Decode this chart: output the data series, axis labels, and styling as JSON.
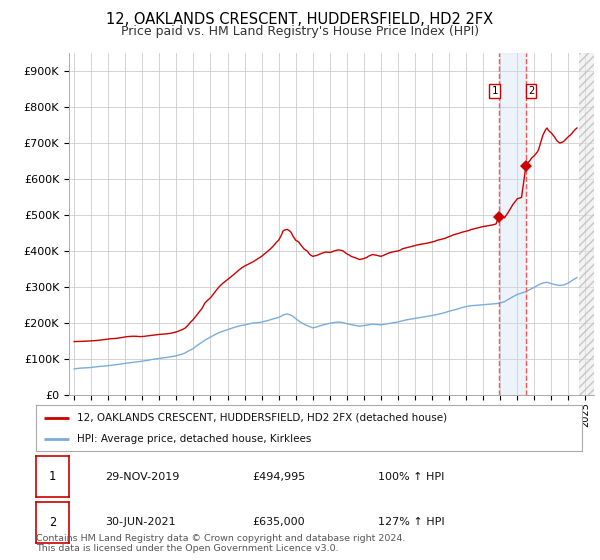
{
  "title": "12, OAKLANDS CRESCENT, HUDDERSFIELD, HD2 2FX",
  "subtitle": "Price paid vs. HM Land Registry's House Price Index (HPI)",
  "title_fontsize": 10.5,
  "subtitle_fontsize": 9,
  "ylabel_ticks": [
    "£0",
    "£100K",
    "£200K",
    "£300K",
    "£400K",
    "£500K",
    "£600K",
    "£700K",
    "£800K",
    "£900K"
  ],
  "ytick_values": [
    0,
    100000,
    200000,
    300000,
    400000,
    500000,
    600000,
    700000,
    800000,
    900000
  ],
  "ylim": [
    0,
    950000
  ],
  "xlim_start": 1994.7,
  "xlim_end": 2025.5,
  "background_color": "#ffffff",
  "grid_color": "#cccccc",
  "red_line_color": "#cc0000",
  "blue_line_color": "#7aaddb",
  "sale1_date_x": 2019.92,
  "sale1_price": 494995,
  "sale1_label": "1",
  "sale2_date_x": 2021.5,
  "sale2_price": 635000,
  "sale2_label": "2",
  "hatch_start": 2024.6,
  "shade_color": "#cce0ff",
  "dashed_color": "#ff5555",
  "legend_line1": "12, OAKLANDS CRESCENT, HUDDERSFIELD, HD2 2FX (detached house)",
  "legend_line2": "HPI: Average price, detached house, Kirklees",
  "table_row1": [
    "1",
    "29-NOV-2019",
    "£494,995",
    "100% ↑ HPI"
  ],
  "table_row2": [
    "2",
    "30-JUN-2021",
    "£635,000",
    "127% ↑ HPI"
  ],
  "footer": "Contains HM Land Registry data © Crown copyright and database right 2024.\nThis data is licensed under the Open Government Licence v3.0.",
  "red_hpi_data": [
    [
      1995.0,
      148000
    ],
    [
      1995.17,
      148200
    ],
    [
      1995.33,
      148400
    ],
    [
      1995.5,
      148500
    ],
    [
      1995.67,
      149000
    ],
    [
      1995.83,
      149500
    ],
    [
      1996.0,
      150000
    ],
    [
      1996.17,
      150500
    ],
    [
      1996.33,
      151000
    ],
    [
      1996.5,
      152000
    ],
    [
      1996.67,
      153000
    ],
    [
      1996.83,
      154000
    ],
    [
      1997.0,
      155000
    ],
    [
      1997.17,
      156000
    ],
    [
      1997.33,
      156500
    ],
    [
      1997.5,
      157000
    ],
    [
      1997.67,
      158500
    ],
    [
      1997.83,
      159500
    ],
    [
      1998.0,
      161000
    ],
    [
      1998.17,
      162000
    ],
    [
      1998.33,
      162500
    ],
    [
      1998.5,
      163000
    ],
    [
      1998.67,
      162500
    ],
    [
      1998.83,
      162000
    ],
    [
      1999.0,
      162000
    ],
    [
      1999.17,
      163000
    ],
    [
      1999.33,
      164000
    ],
    [
      1999.5,
      165000
    ],
    [
      1999.67,
      166000
    ],
    [
      1999.83,
      167000
    ],
    [
      2000.0,
      168000
    ],
    [
      2000.17,
      168500
    ],
    [
      2000.33,
      169000
    ],
    [
      2000.5,
      170000
    ],
    [
      2000.67,
      171000
    ],
    [
      2000.83,
      173000
    ],
    [
      2001.0,
      175000
    ],
    [
      2001.17,
      178000
    ],
    [
      2001.33,
      181000
    ],
    [
      2001.5,
      185000
    ],
    [
      2001.67,
      193000
    ],
    [
      2001.83,
      202000
    ],
    [
      2002.0,
      210000
    ],
    [
      2002.17,
      220000
    ],
    [
      2002.33,
      230000
    ],
    [
      2002.5,
      240000
    ],
    [
      2002.67,
      255000
    ],
    [
      2002.83,
      263000
    ],
    [
      2003.0,
      270000
    ],
    [
      2003.17,
      280000
    ],
    [
      2003.33,
      290000
    ],
    [
      2003.5,
      300000
    ],
    [
      2003.67,
      308000
    ],
    [
      2003.83,
      314000
    ],
    [
      2004.0,
      320000
    ],
    [
      2004.17,
      327000
    ],
    [
      2004.33,
      333000
    ],
    [
      2004.5,
      340000
    ],
    [
      2004.67,
      347000
    ],
    [
      2004.83,
      353000
    ],
    [
      2005.0,
      358000
    ],
    [
      2005.17,
      362000
    ],
    [
      2005.33,
      366000
    ],
    [
      2005.5,
      370000
    ],
    [
      2005.67,
      375000
    ],
    [
      2005.83,
      380000
    ],
    [
      2006.0,
      385000
    ],
    [
      2006.17,
      392000
    ],
    [
      2006.33,
      398000
    ],
    [
      2006.5,
      405000
    ],
    [
      2006.67,
      413000
    ],
    [
      2006.83,
      422000
    ],
    [
      2007.0,
      430000
    ],
    [
      2007.17,
      445000
    ],
    [
      2007.25,
      455000
    ],
    [
      2007.33,
      458000
    ],
    [
      2007.5,
      460000
    ],
    [
      2007.67,
      455000
    ],
    [
      2007.75,
      450000
    ],
    [
      2007.83,
      442000
    ],
    [
      2008.0,
      430000
    ],
    [
      2008.17,
      425000
    ],
    [
      2008.25,
      420000
    ],
    [
      2008.33,
      415000
    ],
    [
      2008.5,
      405000
    ],
    [
      2008.67,
      400000
    ],
    [
      2008.75,
      395000
    ],
    [
      2008.83,
      390000
    ],
    [
      2009.0,
      385000
    ],
    [
      2009.17,
      387000
    ],
    [
      2009.25,
      388000
    ],
    [
      2009.5,
      393000
    ],
    [
      2009.75,
      397000
    ],
    [
      2010.0,
      396000
    ],
    [
      2010.17,
      398000
    ],
    [
      2010.25,
      400000
    ],
    [
      2010.5,
      403000
    ],
    [
      2010.75,
      401000
    ],
    [
      2011.0,
      392000
    ],
    [
      2011.17,
      388000
    ],
    [
      2011.25,
      385000
    ],
    [
      2011.5,
      381000
    ],
    [
      2011.75,
      376000
    ],
    [
      2012.0,
      379000
    ],
    [
      2012.17,
      382000
    ],
    [
      2012.25,
      385000
    ],
    [
      2012.5,
      390000
    ],
    [
      2012.75,
      388000
    ],
    [
      2013.0,
      385000
    ],
    [
      2013.17,
      388000
    ],
    [
      2013.25,
      390000
    ],
    [
      2013.5,
      395000
    ],
    [
      2013.75,
      398000
    ],
    [
      2014.0,
      400000
    ],
    [
      2014.17,
      403000
    ],
    [
      2014.25,
      406000
    ],
    [
      2014.5,
      409000
    ],
    [
      2014.75,
      412000
    ],
    [
      2015.0,
      415000
    ],
    [
      2015.17,
      417000
    ],
    [
      2015.25,
      418000
    ],
    [
      2015.5,
      420000
    ],
    [
      2015.75,
      422000
    ],
    [
      2016.0,
      425000
    ],
    [
      2016.17,
      427000
    ],
    [
      2016.25,
      429000
    ],
    [
      2016.5,
      432000
    ],
    [
      2016.75,
      435000
    ],
    [
      2017.0,
      440000
    ],
    [
      2017.17,
      443000
    ],
    [
      2017.25,
      445000
    ],
    [
      2017.5,
      448000
    ],
    [
      2017.75,
      452000
    ],
    [
      2018.0,
      455000
    ],
    [
      2018.17,
      457000
    ],
    [
      2018.25,
      459000
    ],
    [
      2018.5,
      462000
    ],
    [
      2018.75,
      465000
    ],
    [
      2019.0,
      468000
    ],
    [
      2019.17,
      469000
    ],
    [
      2019.25,
      470000
    ],
    [
      2019.5,
      472000
    ],
    [
      2019.75,
      475000
    ],
    [
      2019.92,
      494995
    ],
    [
      2020.0,
      498000
    ],
    [
      2020.17,
      495000
    ],
    [
      2020.25,
      492000
    ],
    [
      2020.5,
      510000
    ],
    [
      2020.75,
      530000
    ],
    [
      2021.0,
      545000
    ],
    [
      2021.25,
      549000
    ],
    [
      2021.5,
      635000
    ],
    [
      2021.67,
      648000
    ],
    [
      2021.75,
      652000
    ],
    [
      2021.83,
      658000
    ],
    [
      2022.0,
      665000
    ],
    [
      2022.17,
      675000
    ],
    [
      2022.25,
      682000
    ],
    [
      2022.33,
      695000
    ],
    [
      2022.5,
      722000
    ],
    [
      2022.67,
      738000
    ],
    [
      2022.75,
      742000
    ],
    [
      2022.83,
      735000
    ],
    [
      2023.0,
      728000
    ],
    [
      2023.17,
      718000
    ],
    [
      2023.25,
      712000
    ],
    [
      2023.33,
      706000
    ],
    [
      2023.5,
      700000
    ],
    [
      2023.67,
      703000
    ],
    [
      2023.75,
      706000
    ],
    [
      2023.83,
      710000
    ],
    [
      2024.0,
      718000
    ],
    [
      2024.17,
      725000
    ],
    [
      2024.25,
      730000
    ],
    [
      2024.4,
      738000
    ],
    [
      2024.5,
      742000
    ]
  ],
  "blue_hpi_data": [
    [
      1995.0,
      72000
    ],
    [
      1995.17,
      73000
    ],
    [
      1995.33,
      74000
    ],
    [
      1995.5,
      74500
    ],
    [
      1995.67,
      75000
    ],
    [
      1995.83,
      75500
    ],
    [
      1996.0,
      76000
    ],
    [
      1996.17,
      77000
    ],
    [
      1996.33,
      78000
    ],
    [
      1996.5,
      79000
    ],
    [
      1996.67,
      79500
    ],
    [
      1996.83,
      80000
    ],
    [
      1997.0,
      81000
    ],
    [
      1997.17,
      82000
    ],
    [
      1997.33,
      83000
    ],
    [
      1997.5,
      84000
    ],
    [
      1997.67,
      85000
    ],
    [
      1997.83,
      86000
    ],
    [
      1998.0,
      87500
    ],
    [
      1998.17,
      88500
    ],
    [
      1998.33,
      89500
    ],
    [
      1998.5,
      90500
    ],
    [
      1998.67,
      91500
    ],
    [
      1998.83,
      92500
    ],
    [
      1999.0,
      93500
    ],
    [
      1999.17,
      95000
    ],
    [
      1999.33,
      96000
    ],
    [
      1999.5,
      97500
    ],
    [
      1999.67,
      99000
    ],
    [
      1999.83,
      100000
    ],
    [
      2000.0,
      101000
    ],
    [
      2000.17,
      102500
    ],
    [
      2000.33,
      103500
    ],
    [
      2000.5,
      104500
    ],
    [
      2000.67,
      106000
    ],
    [
      2000.83,
      107000
    ],
    [
      2001.0,
      108500
    ],
    [
      2001.17,
      111000
    ],
    [
      2001.33,
      113000
    ],
    [
      2001.5,
      116000
    ],
    [
      2001.67,
      121000
    ],
    [
      2001.83,
      125000
    ],
    [
      2002.0,
      129000
    ],
    [
      2002.17,
      136000
    ],
    [
      2002.33,
      141000
    ],
    [
      2002.5,
      146000
    ],
    [
      2002.67,
      152000
    ],
    [
      2002.83,
      156000
    ],
    [
      2003.0,
      160500
    ],
    [
      2003.17,
      165000
    ],
    [
      2003.33,
      169000
    ],
    [
      2003.5,
      173000
    ],
    [
      2003.67,
      176000
    ],
    [
      2003.83,
      178500
    ],
    [
      2004.0,
      181000
    ],
    [
      2004.17,
      184000
    ],
    [
      2004.33,
      186500
    ],
    [
      2004.5,
      189000
    ],
    [
      2004.67,
      191000
    ],
    [
      2004.83,
      193000
    ],
    [
      2005.0,
      194000
    ],
    [
      2005.17,
      196000
    ],
    [
      2005.33,
      198000
    ],
    [
      2005.5,
      200000
    ],
    [
      2005.67,
      200000
    ],
    [
      2005.83,
      201000
    ],
    [
      2006.0,
      202000
    ],
    [
      2006.17,
      204500
    ],
    [
      2006.33,
      206000
    ],
    [
      2006.5,
      208500
    ],
    [
      2006.67,
      211000
    ],
    [
      2006.83,
      213000
    ],
    [
      2007.0,
      215500
    ],
    [
      2007.17,
      219000
    ],
    [
      2007.25,
      222000
    ],
    [
      2007.5,
      225000
    ],
    [
      2007.75,
      221000
    ],
    [
      2008.0,
      212000
    ],
    [
      2008.25,
      203000
    ],
    [
      2008.5,
      196000
    ],
    [
      2008.75,
      191000
    ],
    [
      2009.0,
      186000
    ],
    [
      2009.25,
      189000
    ],
    [
      2009.5,
      193000
    ],
    [
      2009.75,
      196000
    ],
    [
      2010.0,
      199000
    ],
    [
      2010.25,
      201000
    ],
    [
      2010.5,
      202500
    ],
    [
      2010.75,
      201000
    ],
    [
      2011.0,
      198000
    ],
    [
      2011.25,
      195000
    ],
    [
      2011.5,
      193000
    ],
    [
      2011.75,
      191000
    ],
    [
      2012.0,
      192500
    ],
    [
      2012.25,
      194500
    ],
    [
      2012.5,
      196500
    ],
    [
      2012.75,
      195500
    ],
    [
      2013.0,
      194500
    ],
    [
      2013.25,
      196500
    ],
    [
      2013.5,
      198500
    ],
    [
      2013.75,
      200500
    ],
    [
      2014.0,
      202500
    ],
    [
      2014.25,
      205500
    ],
    [
      2014.5,
      208500
    ],
    [
      2014.75,
      210500
    ],
    [
      2015.0,
      212500
    ],
    [
      2015.25,
      214500
    ],
    [
      2015.5,
      216500
    ],
    [
      2015.75,
      218500
    ],
    [
      2016.0,
      220500
    ],
    [
      2016.25,
      223000
    ],
    [
      2016.5,
      225500
    ],
    [
      2016.75,
      228500
    ],
    [
      2017.0,
      232500
    ],
    [
      2017.25,
      235500
    ],
    [
      2017.5,
      238500
    ],
    [
      2017.75,
      242500
    ],
    [
      2018.0,
      245500
    ],
    [
      2018.25,
      247500
    ],
    [
      2018.5,
      248500
    ],
    [
      2018.75,
      249500
    ],
    [
      2019.0,
      250500
    ],
    [
      2019.25,
      251500
    ],
    [
      2019.5,
      252500
    ],
    [
      2019.75,
      253500
    ],
    [
      2019.92,
      254500
    ],
    [
      2020.0,
      255500
    ],
    [
      2020.25,
      259000
    ],
    [
      2020.5,
      266000
    ],
    [
      2020.75,
      273000
    ],
    [
      2021.0,
      279000
    ],
    [
      2021.25,
      283000
    ],
    [
      2021.5,
      287000
    ],
    [
      2021.75,
      293000
    ],
    [
      2022.0,
      299000
    ],
    [
      2022.25,
      306000
    ],
    [
      2022.5,
      311000
    ],
    [
      2022.75,
      313000
    ],
    [
      2023.0,
      309000
    ],
    [
      2023.25,
      306000
    ],
    [
      2023.5,
      304000
    ],
    [
      2023.75,
      306000
    ],
    [
      2024.0,
      311000
    ],
    [
      2024.25,
      319000
    ],
    [
      2024.5,
      326000
    ]
  ]
}
